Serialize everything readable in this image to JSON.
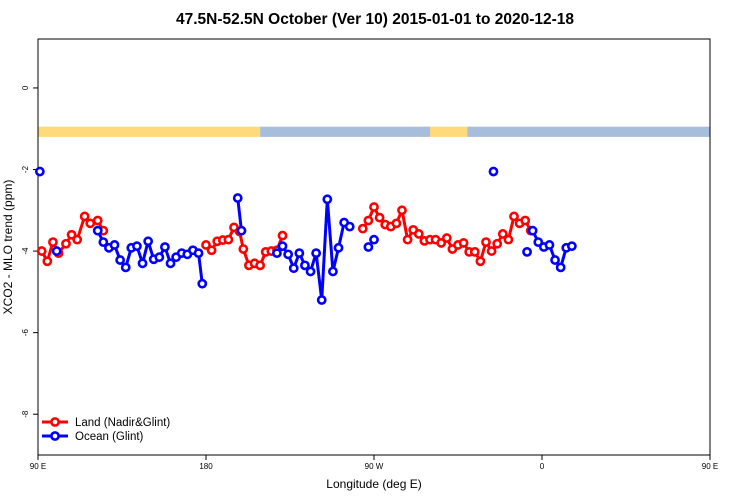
{
  "chart_data": {
    "type": "line",
    "title": "47.5N-52.5N October (Ver 10)   2015-01-01 to 2020-12-18",
    "xlabel": "Longitude (deg E)",
    "ylabel": "XCO2 - MLO trend (ppm)",
    "xlim": [
      -180,
      180
    ],
    "ylim": [
      -9,
      1.2
    ],
    "x_ticks": [
      {
        "value": -180,
        "label": "90 E"
      },
      {
        "value": -90,
        "label": "180"
      },
      {
        "value": 0,
        "label": "90 W"
      },
      {
        "value": 90,
        "label": "0"
      },
      {
        "value": 180,
        "label": "90 E"
      },
      {
        "value": 270,
        "label": "180"
      }
    ],
    "y_ticks": [
      {
        "value": 0,
        "label": "0"
      },
      {
        "value": -2,
        "label": "-2"
      },
      {
        "value": -4,
        "label": "-4"
      },
      {
        "value": -6,
        "label": "-6"
      },
      {
        "value": -8,
        "label": "-8"
      }
    ],
    "land_strip": {
      "y_range": [
        -1.2,
        -0.95
      ],
      "land_color": "#ffd97a",
      "ocean_color": "#a6bddb",
      "segments": [
        {
          "type": "land",
          "from": -180,
          "to": -61
        },
        {
          "type": "ocean",
          "from": -61,
          "to": 30
        },
        {
          "type": "land",
          "from": 30,
          "to": 50
        },
        {
          "type": "ocean",
          "from": 50,
          "to": 235
        },
        {
          "type": "land",
          "from": 235,
          "to": 270
        },
        {
          "type": "ocean",
          "from": 270,
          "to": 300
        },
        {
          "type": "land",
          "from": 300,
          "to": 322
        },
        {
          "type": "ocean",
          "from": 322,
          "to": 360
        }
      ]
    },
    "series": [
      {
        "name": "Land (Nadir&Glint)",
        "color": "#ff0000",
        "segments": [
          [
            [
              -178,
              -4.0
            ],
            [
              -175,
              -4.25
            ],
            [
              -172,
              -3.78
            ],
            [
              -169,
              -4.05
            ],
            [
              -165,
              -3.82
            ],
            [
              -162,
              -3.6
            ],
            [
              -159,
              -3.72
            ],
            [
              -155,
              -3.15
            ],
            [
              -152,
              -3.32
            ],
            [
              -148,
              -3.25
            ],
            [
              -145,
              -3.5
            ]
          ],
          [
            [
              -90,
              -3.85
            ],
            [
              -87,
              -3.98
            ],
            [
              -84,
              -3.76
            ],
            [
              -81,
              -3.73
            ],
            [
              -78,
              -3.72
            ],
            [
              -75,
              -3.42
            ],
            [
              -72,
              -3.52
            ],
            [
              -70,
              -3.95
            ],
            [
              -67,
              -4.35
            ],
            [
              -64,
              -4.3
            ],
            [
              -61,
              -4.35
            ],
            [
              -58,
              -4.02
            ],
            [
              -55,
              -4.0
            ],
            [
              -52,
              -3.98
            ],
            [
              -49,
              -3.62
            ]
          ],
          [
            [
              -6,
              -3.45
            ],
            [
              -3,
              -3.25
            ],
            [
              0,
              -2.92
            ],
            [
              3,
              -3.18
            ],
            [
              6,
              -3.35
            ],
            [
              9,
              -3.4
            ],
            [
              12,
              -3.32
            ],
            [
              15,
              -3.0
            ],
            [
              18,
              -3.72
            ],
            [
              21,
              -3.48
            ],
            [
              24,
              -3.58
            ],
            [
              27,
              -3.75
            ],
            [
              30,
              -3.72
            ],
            [
              33,
              -3.72
            ],
            [
              36,
              -3.8
            ],
            [
              39,
              -3.68
            ],
            [
              42,
              -3.95
            ],
            [
              45,
              -3.85
            ],
            [
              48,
              -3.8
            ],
            [
              51,
              -4.02
            ],
            [
              54,
              -4.02
            ],
            [
              57,
              -4.25
            ],
            [
              60,
              -3.78
            ],
            [
              63,
              -4.0
            ],
            [
              66,
              -3.82
            ],
            [
              69,
              -3.58
            ],
            [
              72,
              -3.72
            ],
            [
              75,
              -3.15
            ],
            [
              78,
              -3.32
            ],
            [
              81,
              -3.25
            ],
            [
              84,
              -3.5
            ]
          ]
        ]
      },
      {
        "name": "Ocean (Glint)",
        "color": "#0000ff",
        "segments": [
          [
            [
              -170,
              -4.0
            ]
          ],
          [
            [
              -148,
              -3.5
            ],
            [
              -145,
              -3.78
            ],
            [
              -142,
              -3.92
            ],
            [
              -139,
              -3.85
            ],
            [
              -136,
              -4.22
            ],
            [
              -133,
              -4.4
            ],
            [
              -130,
              -3.92
            ],
            [
              -127,
              -3.88
            ],
            [
              -124,
              -4.3
            ],
            [
              -121,
              -3.76
            ],
            [
              -118,
              -4.2
            ],
            [
              -115,
              -4.15
            ],
            [
              -112,
              -3.9
            ],
            [
              -109,
              -4.3
            ],
            [
              -106,
              -4.15
            ],
            [
              -103,
              -4.05
            ],
            [
              -100,
              -4.08
            ],
            [
              -97,
              -3.98
            ],
            [
              -94,
              -4.05
            ],
            [
              -92,
              -4.8
            ]
          ],
          [
            [
              -73,
              -2.7
            ],
            [
              -71,
              -3.5
            ]
          ],
          [
            [
              -52,
              -4.05
            ],
            [
              -49,
              -3.88
            ],
            [
              -46,
              -4.08
            ],
            [
              -43,
              -4.42
            ],
            [
              -40,
              -4.05
            ],
            [
              -37,
              -4.35
            ],
            [
              -34,
              -4.5
            ],
            [
              -31,
              -4.05
            ],
            [
              -28,
              -5.2
            ],
            [
              -25,
              -2.73
            ],
            [
              -22,
              -4.5
            ],
            [
              -19,
              -3.92
            ],
            [
              -16,
              -3.3
            ],
            [
              -13,
              -3.4
            ]
          ],
          [
            [
              -3,
              -3.9
            ],
            [
              0,
              -3.72
            ]
          ],
          [
            [
              85,
              -3.5
            ],
            [
              88,
              -3.78
            ],
            [
              91,
              -3.9
            ],
            [
              94,
              -3.85
            ],
            [
              97,
              -4.22
            ],
            [
              100,
              -4.4
            ],
            [
              103,
              -3.92
            ],
            [
              106,
              -3.88
            ]
          ]
        ]
      }
    ],
    "isolated_points": [
      {
        "series": "Ocean (Glint)",
        "x": -179,
        "y": -2.05
      },
      {
        "series": "Ocean (Glint)",
        "x": 64,
        "y": -2.05
      },
      {
        "series": "Ocean (Glint)",
        "x": 82,
        "y": -4.02
      }
    ],
    "legend": {
      "position": "bottom-left"
    }
  }
}
